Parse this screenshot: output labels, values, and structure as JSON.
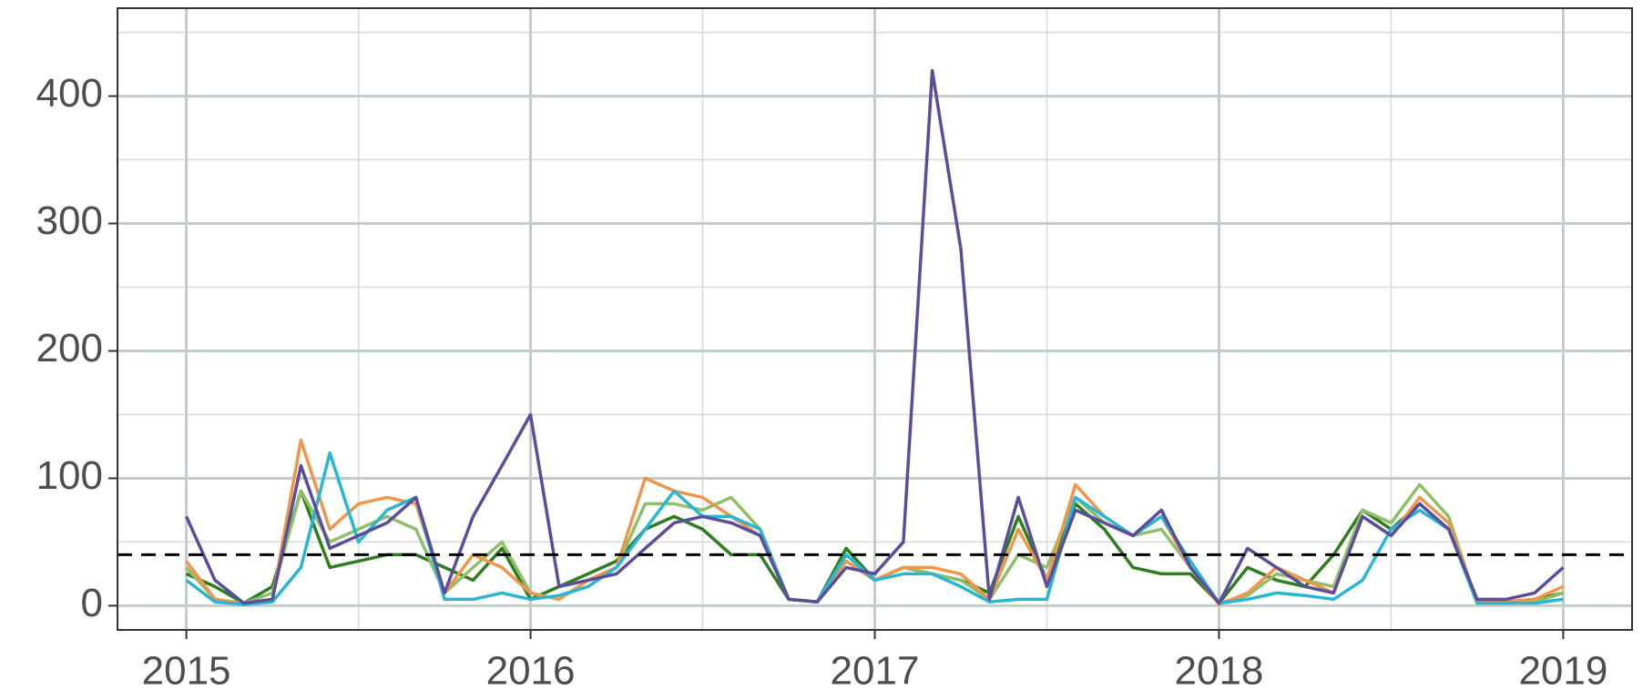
{
  "chart_data": {
    "type": "line",
    "x": [
      2015,
      2015.083,
      2015.167,
      2015.25,
      2015.333,
      2015.417,
      2015.5,
      2015.583,
      2015.667,
      2015.75,
      2015.833,
      2015.917,
      2016,
      2016.083,
      2016.167,
      2016.25,
      2016.333,
      2016.417,
      2016.5,
      2016.583,
      2016.667,
      2016.75,
      2016.833,
      2016.917,
      2017,
      2017.083,
      2017.167,
      2017.25,
      2017.333,
      2017.417,
      2017.5,
      2017.583,
      2017.667,
      2017.75,
      2017.833,
      2017.917,
      2018,
      2018.083,
      2018.167,
      2018.25,
      2018.333,
      2018.417,
      2018.5,
      2018.583,
      2018.667,
      2018.75,
      2018.833,
      2018.917,
      2019
    ],
    "series": [
      {
        "color": "#2e7d1f",
        "values": [
          25,
          15,
          2,
          15,
          90,
          30,
          35,
          40,
          40,
          30,
          20,
          45,
          5,
          15,
          25,
          35,
          60,
          70,
          60,
          40,
          40,
          5,
          3,
          45,
          20,
          30,
          25,
          20,
          10,
          70,
          20,
          80,
          60,
          30,
          25,
          25,
          2,
          30,
          20,
          15,
          40,
          75,
          60,
          80,
          60,
          3,
          3,
          5,
          10
        ]
      },
      {
        "color": "#8fbf6a",
        "values": [
          30,
          5,
          2,
          10,
          90,
          50,
          60,
          70,
          60,
          10,
          30,
          50,
          10,
          5,
          20,
          30,
          80,
          80,
          75,
          85,
          60,
          5,
          3,
          40,
          20,
          30,
          25,
          20,
          5,
          40,
          30,
          85,
          65,
          55,
          60,
          30,
          2,
          8,
          25,
          20,
          15,
          75,
          65,
          95,
          70,
          2,
          2,
          3,
          10
        ]
      },
      {
        "color": "#f0964a",
        "values": [
          35,
          5,
          1,
          5,
          130,
          60,
          80,
          85,
          80,
          10,
          40,
          30,
          10,
          5,
          20,
          30,
          100,
          90,
          85,
          70,
          55,
          5,
          3,
          35,
          20,
          30,
          30,
          25,
          5,
          60,
          20,
          95,
          70,
          55,
          70,
          30,
          1,
          10,
          30,
          20,
          10,
          70,
          55,
          85,
          65,
          3,
          3,
          5,
          15
        ]
      },
      {
        "color": "#29b6d6",
        "values": [
          20,
          3,
          1,
          3,
          30,
          120,
          50,
          75,
          85,
          5,
          5,
          10,
          5,
          8,
          15,
          30,
          60,
          90,
          70,
          70,
          60,
          5,
          3,
          40,
          20,
          25,
          25,
          15,
          3,
          5,
          5,
          85,
          70,
          55,
          70,
          35,
          2,
          5,
          10,
          8,
          5,
          20,
          60,
          75,
          60,
          2,
          2,
          2,
          5
        ]
      },
      {
        "color": "#5a4e9c",
        "values": [
          70,
          20,
          2,
          5,
          110,
          45,
          55,
          65,
          85,
          10,
          70,
          110,
          150,
          15,
          20,
          25,
          45,
          65,
          70,
          65,
          55,
          5,
          3,
          30,
          25,
          50,
          420,
          280,
          5,
          85,
          15,
          75,
          65,
          55,
          75,
          30,
          2,
          45,
          30,
          15,
          10,
          70,
          55,
          80,
          60,
          5,
          5,
          10,
          30
        ]
      }
    ],
    "hline": 40,
    "xlim": [
      2014.8,
      2019.2
    ],
    "xticks": [
      2015,
      2016,
      2017,
      2018,
      2019
    ],
    "xminor": [
      2015.5,
      2016.5,
      2017.5,
      2018.5
    ],
    "ylim": [
      -19,
      469
    ],
    "yticks": [
      0,
      100,
      200,
      300,
      400
    ],
    "yminor": [
      50,
      150,
      250,
      350,
      450
    ],
    "grid": true
  }
}
